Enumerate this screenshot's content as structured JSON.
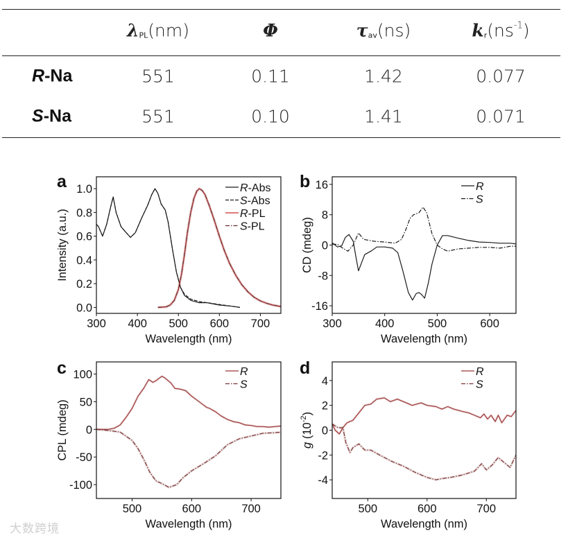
{
  "table": {
    "headers": [
      {
        "sym": "λ",
        "sub": "PL",
        "unit": "(nm)",
        "sup": ""
      },
      {
        "sym": "Φ",
        "sub": "",
        "unit": "",
        "sup": ""
      },
      {
        "sym": "τ",
        "sub": "av",
        "unit": "(ns",
        "sup": "",
        "close": ")"
      },
      {
        "sym": "k",
        "sub": "r",
        "unit": "(ns",
        "sup": "-1",
        "close": ")"
      }
    ],
    "rows": [
      {
        "label_italic": "R",
        "label_rest": "-Na",
        "values": [
          "551",
          "0.11",
          "1.42",
          "0.077"
        ]
      },
      {
        "label_italic": "S",
        "label_rest": "-Na",
        "values": [
          "551",
          "0.10",
          "1.41",
          "0.071"
        ]
      }
    ]
  },
  "watermark": "大数跨境",
  "colors": {
    "black": "#1a1a1a",
    "red": "#cc2a2a",
    "darkred": "#9b3535"
  },
  "chart_data": [
    {
      "panel": "a",
      "type": "line",
      "xlabel": "Wavelength (nm)",
      "ylabel": "Intensity (a.u.)",
      "xlim": [
        300,
        750
      ],
      "ylim": [
        -0.05,
        1.1
      ],
      "xticks": [
        300,
        400,
        500,
        600,
        700
      ],
      "xtick_labels": [
        "300",
        "400",
        "500",
        "600",
        "700"
      ],
      "yticks": [
        0,
        0.2,
        0.4,
        0.6,
        0.8,
        1.0
      ],
      "ytick_labels": [
        "0.0",
        "0.2",
        "0.4",
        "0.6",
        "0.8",
        "1.0"
      ],
      "legend_position": "top-right",
      "series": [
        {
          "name_italic": "R",
          "name_rest": "-Abs",
          "color": "#1a1a1a",
          "style": "solid",
          "x": [
            300,
            305,
            315,
            325,
            335,
            341,
            348,
            360,
            370,
            383,
            395,
            410,
            425,
            435,
            443,
            450,
            458,
            468,
            475,
            485,
            495,
            505,
            515,
            530,
            550,
            570,
            600,
            630,
            650
          ],
          "y": [
            0.7,
            0.68,
            0.6,
            0.7,
            0.85,
            0.93,
            0.8,
            0.68,
            0.64,
            0.59,
            0.63,
            0.75,
            0.86,
            0.95,
            1.0,
            0.96,
            0.87,
            0.82,
            0.72,
            0.5,
            0.3,
            0.17,
            0.1,
            0.06,
            0.04,
            0.04,
            0.02,
            0.01,
            0.0
          ]
        },
        {
          "name_italic": "S",
          "name_rest": "-Abs",
          "color": "#1a1a1a",
          "style": "dash",
          "x": [
            300,
            305,
            315,
            325,
            335,
            341,
            348,
            360,
            370,
            383,
            395,
            410,
            425,
            435,
            443,
            450,
            458,
            468,
            475,
            485,
            495,
            505,
            515,
            530,
            550,
            570,
            600,
            630,
            650
          ],
          "y": [
            0.7,
            0.68,
            0.6,
            0.7,
            0.85,
            0.93,
            0.8,
            0.68,
            0.64,
            0.59,
            0.63,
            0.75,
            0.86,
            0.95,
            1.0,
            0.96,
            0.87,
            0.82,
            0.72,
            0.5,
            0.3,
            0.17,
            0.11,
            0.07,
            0.05,
            0.04,
            0.025,
            0.01,
            0.0
          ]
        },
        {
          "name_italic": "R",
          "name_rest": "-PL",
          "color": "#cc2a2a",
          "style": "solid",
          "x": [
            450,
            470,
            480,
            490,
            500,
            508,
            515,
            522,
            530,
            538,
            545,
            551,
            558,
            565,
            575,
            588,
            600,
            612,
            625,
            640,
            655,
            670,
            685,
            700,
            715,
            730,
            750
          ],
          "y": [
            0,
            0.005,
            0.02,
            0.06,
            0.15,
            0.29,
            0.45,
            0.63,
            0.8,
            0.92,
            0.98,
            1.0,
            0.985,
            0.95,
            0.86,
            0.73,
            0.6,
            0.48,
            0.37,
            0.27,
            0.19,
            0.13,
            0.085,
            0.055,
            0.035,
            0.02,
            0.008
          ]
        },
        {
          "name_italic": "S",
          "name_rest": "-PL",
          "color": "#6a2a2a",
          "style": "dashdot",
          "x": [
            450,
            470,
            480,
            490,
            500,
            508,
            515,
            522,
            530,
            538,
            545,
            551,
            558,
            565,
            575,
            588,
            600,
            612,
            625,
            640,
            655,
            670,
            685,
            700,
            715,
            730,
            750
          ],
          "y": [
            0,
            0.005,
            0.02,
            0.06,
            0.15,
            0.29,
            0.45,
            0.63,
            0.8,
            0.92,
            0.98,
            1.0,
            0.985,
            0.95,
            0.86,
            0.73,
            0.6,
            0.48,
            0.37,
            0.27,
            0.19,
            0.13,
            0.085,
            0.055,
            0.035,
            0.02,
            0.008
          ]
        }
      ]
    },
    {
      "panel": "b",
      "type": "line",
      "xlabel": "Wavelength (nm)",
      "ylabel": "CD (mdeg)",
      "xlim": [
        300,
        650
      ],
      "ylim": [
        -18,
        18
      ],
      "xticks": [
        300,
        400,
        500,
        600
      ],
      "xtick_labels": [
        "300",
        "400",
        "500",
        "600"
      ],
      "yticks": [
        -16,
        -8,
        0,
        8,
        16
      ],
      "ytick_labels": [
        "-16",
        "-8",
        "0",
        "8",
        "16"
      ],
      "legend_position": "top-right",
      "series": [
        {
          "name_italic": "R",
          "name_rest": "",
          "color": "#1a1a1a",
          "style": "solid",
          "x": [
            300,
            310,
            318,
            325,
            332,
            340,
            345,
            350,
            355,
            362,
            375,
            385,
            400,
            415,
            425,
            435,
            445,
            453,
            460,
            465,
            470,
            476,
            483,
            490,
            500,
            510,
            520,
            540,
            560,
            580,
            600,
            620,
            640,
            650
          ],
          "y": [
            0.6,
            -0.5,
            -0.2,
            2,
            2.8,
            1,
            -3,
            -6.8,
            -5,
            -2.5,
            -1.5,
            -0.5,
            -0.5,
            -0.8,
            -2,
            -7,
            -12.5,
            -14.5,
            -12.8,
            -12.5,
            -13,
            -14,
            -10,
            -5,
            0,
            2.5,
            2.5,
            1.8,
            1.2,
            0.8,
            0.7,
            0.5,
            0.5,
            0.3
          ]
        },
        {
          "name_italic": "S",
          "name_rest": "",
          "color": "#1a1a1a",
          "style": "dashdot",
          "x": [
            300,
            310,
            320,
            330,
            340,
            350,
            360,
            380,
            400,
            420,
            432,
            440,
            448,
            455,
            465,
            473,
            480,
            490,
            500,
            510,
            520,
            540,
            560,
            580,
            600,
            620,
            640,
            650
          ],
          "y": [
            0.2,
            0.2,
            -0.8,
            -1.6,
            0,
            3.2,
            1.5,
            1,
            0.8,
            0.5,
            1.5,
            4,
            7,
            8,
            8.5,
            10,
            8.5,
            3,
            0,
            -1,
            -1.6,
            -1,
            -0.8,
            -0.6,
            -0.6,
            -0.8,
            -0.3,
            -0.3
          ]
        }
      ]
    },
    {
      "panel": "c",
      "type": "line",
      "xlabel": "Wavelength (nm)",
      "ylabel": "CPL (mdeg)",
      "xlim": [
        440,
        750
      ],
      "ylim": [
        -125,
        122
      ],
      "xticks": [
        500,
        600,
        700
      ],
      "xtick_labels": [
        "500",
        "600",
        "700"
      ],
      "yticks": [
        -100,
        -50,
        0,
        50,
        100
      ],
      "ytick_labels": [
        "-100",
        "-50",
        "0",
        "50",
        "100"
      ],
      "legend_position": "top-right",
      "series": [
        {
          "name_italic": "R",
          "name_rest": "",
          "color": "#9b3535",
          "style": "solid",
          "x": [
            440,
            460,
            470,
            480,
            490,
            500,
            510,
            520,
            528,
            535,
            540,
            550,
            555,
            565,
            572,
            580,
            590,
            600,
            610,
            620,
            625,
            630,
            640,
            650,
            660,
            670,
            680,
            690,
            700,
            710,
            720,
            730,
            740,
            750
          ],
          "y": [
            0,
            0,
            2,
            8,
            22,
            38,
            60,
            75,
            90,
            85,
            88,
            96,
            93,
            84,
            74,
            73,
            70,
            60,
            52,
            44,
            40,
            38,
            32,
            24,
            18,
            14,
            12,
            8,
            7,
            5,
            5,
            4,
            5,
            6
          ]
        },
        {
          "name_italic": "S",
          "name_rest": "",
          "color": "#7a3030",
          "style": "dashdot",
          "x": [
            440,
            460,
            480,
            500,
            510,
            520,
            530,
            540,
            550,
            562,
            575,
            585,
            600,
            620,
            630,
            640,
            650,
            660,
            680,
            700,
            720,
            740,
            750
          ],
          "y": [
            0,
            -2,
            -5,
            -20,
            -35,
            -55,
            -78,
            -93,
            -98,
            -105,
            -100,
            -88,
            -75,
            -62,
            -55,
            -48,
            -38,
            -28,
            -17,
            -12,
            -7,
            -6,
            -5
          ]
        }
      ]
    },
    {
      "panel": "d",
      "type": "line",
      "xlabel": "Wavelength (nm)",
      "ylabel_italic": "g",
      "ylabel_rest": " (10",
      "ylabel_sup": "-2",
      "ylabel_close": ")",
      "xlim": [
        440,
        750
      ],
      "ylim": [
        -5.5,
        5.5
      ],
      "xticks": [
        500,
        600,
        700
      ],
      "xtick_labels": [
        "500",
        "600",
        "700"
      ],
      "yticks": [
        -4,
        -2,
        0,
        2,
        4
      ],
      "ytick_labels": [
        "-4",
        "-2",
        "0",
        "2",
        "4"
      ],
      "legend_position": "top-right",
      "series": [
        {
          "name_italic": "R",
          "name_rest": "",
          "color": "#9b3535",
          "style": "solid",
          "x": [
            440,
            445,
            452,
            458,
            465,
            475,
            485,
            495,
            505,
            515,
            528,
            538,
            550,
            565,
            575,
            590,
            600,
            615,
            625,
            635,
            645,
            660,
            670,
            680,
            690,
            696,
            702,
            708,
            715,
            720,
            726,
            735,
            742,
            750
          ],
          "y": [
            0.5,
            0,
            -0.3,
            0.2,
            0.6,
            0.8,
            1.4,
            2,
            2.1,
            2.5,
            2.6,
            2.3,
            2.5,
            2.2,
            2,
            2.2,
            2,
            1.9,
            1.7,
            1.9,
            1.7,
            1.5,
            1.4,
            1.2,
            1,
            1.3,
            0.9,
            1.2,
            0.7,
            1.2,
            0.6,
            1.2,
            1.1,
            1.6
          ]
        },
        {
          "name_italic": "S",
          "name_rest": "",
          "color": "#7a3030",
          "style": "dashdot",
          "x": [
            440,
            450,
            458,
            463,
            470,
            475,
            485,
            495,
            505,
            520,
            540,
            560,
            580,
            600,
            615,
            625,
            640,
            660,
            680,
            692,
            700,
            710,
            720,
            730,
            740,
            750
          ],
          "y": [
            0.5,
            0.2,
            0.2,
            -1,
            -1.8,
            -1.4,
            -1.1,
            -1.6,
            -1.6,
            -2,
            -2.5,
            -2.9,
            -3.4,
            -3.8,
            -4,
            -3.9,
            -3.8,
            -3.6,
            -3.3,
            -2.7,
            -3.2,
            -2.8,
            -2.2,
            -2.6,
            -3,
            -2
          ]
        }
      ]
    }
  ]
}
